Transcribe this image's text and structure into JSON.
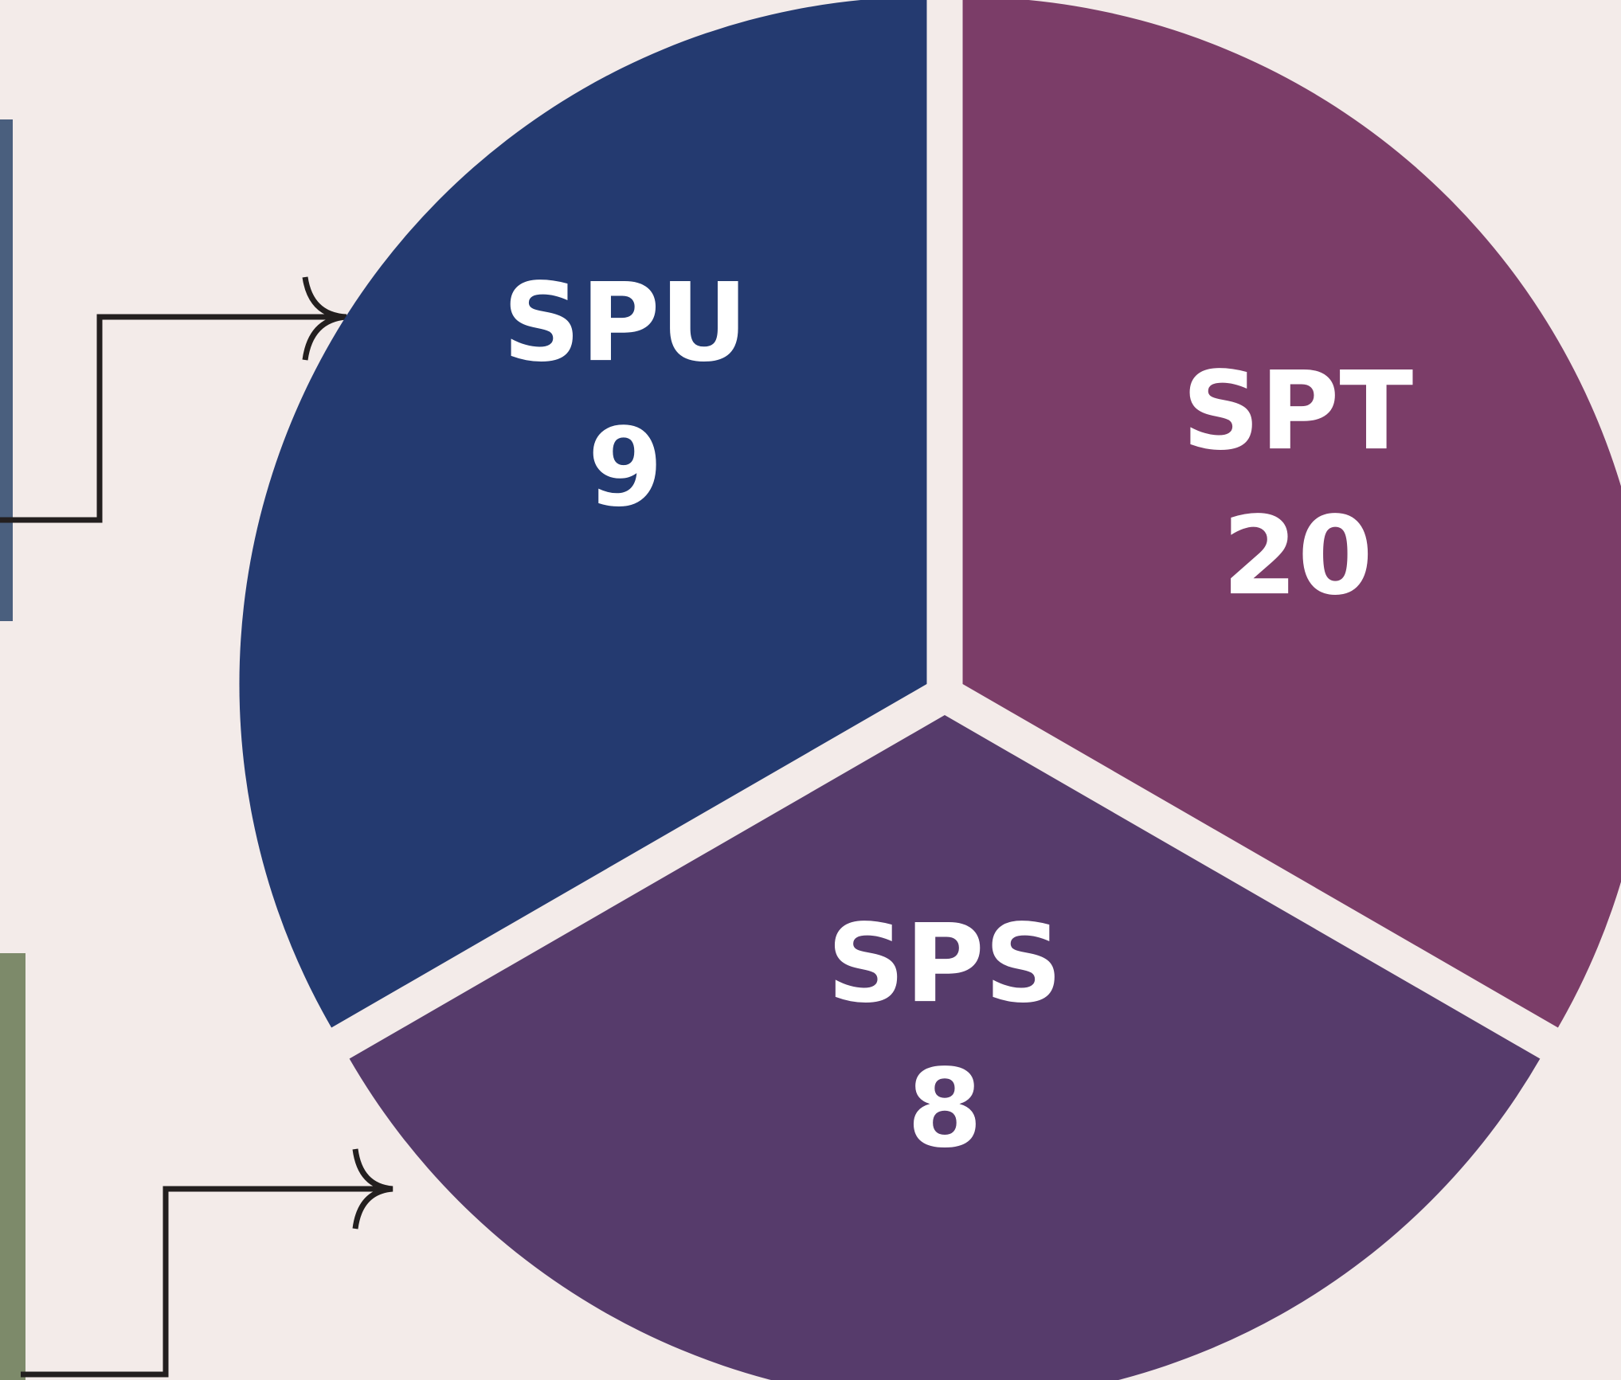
{
  "segments": [
    {
      "label": "SPU",
      "count": 9,
      "color": "#243a70"
    },
    {
      "label": "SPT",
      "count": 20,
      "color": "#7b3d68"
    },
    {
      "label": "SPS",
      "count": 8,
      "color": "#563b6b"
    }
  ]
}
